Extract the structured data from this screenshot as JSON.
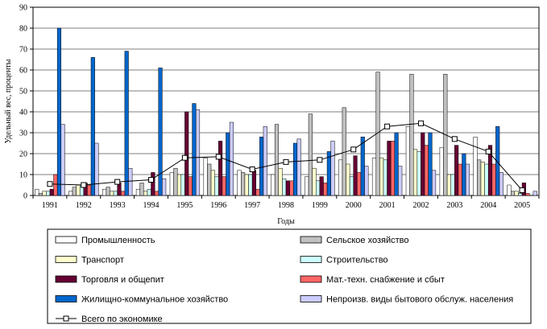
{
  "chart_data": {
    "type": "bar",
    "xlabel": "Годы",
    "ylabel": "Удельный вес, проценты",
    "ylim": [
      0,
      90
    ],
    "yticks": [
      0,
      10,
      20,
      30,
      40,
      50,
      60,
      70,
      80,
      90
    ],
    "categories": [
      "1991",
      "1992",
      "1993",
      "1994",
      "1995",
      "1996",
      "1997",
      "1998",
      "1999",
      "2000",
      "2001",
      "2002",
      "2003",
      "2004",
      "2005"
    ],
    "grid": "horizontal",
    "legend_position": "bottom",
    "series": [
      {
        "name": "Промышленность",
        "color": "#ffffff",
        "values": [
          3,
          2,
          3,
          3,
          11,
          18,
          12,
          10,
          9,
          17,
          18,
          33,
          23,
          28,
          5
        ]
      },
      {
        "name": "Сельское хозяйство",
        "color": "#c0c0c0",
        "values": [
          1,
          4,
          4,
          6,
          13,
          15,
          11,
          34,
          39,
          42,
          59,
          58,
          58,
          17,
          2
        ]
      },
      {
        "name": "Транспорт",
        "color": "#ffffcc",
        "values": [
          2,
          5,
          2,
          2,
          10,
          12,
          10,
          13,
          13,
          15,
          18,
          22,
          10,
          16,
          2
        ]
      },
      {
        "name": "Строительство",
        "color": "#ccffff",
        "values": [
          2,
          5,
          2,
          3,
          10,
          9,
          10,
          8,
          7,
          9,
          17,
          21,
          10,
          15,
          1
        ]
      },
      {
        "name": "Торговля и общепит",
        "color": "#660033",
        "values": [
          3,
          6,
          6,
          11,
          40,
          26,
          12,
          7,
          9,
          19,
          26,
          30,
          24,
          24,
          6
        ]
      },
      {
        "name": "Мат.-техн. снабжение и сбыт",
        "color": "#ff6666",
        "values": [
          10,
          5,
          2,
          2,
          9,
          9,
          3,
          7,
          6,
          11,
          26,
          24,
          15,
          15,
          1
        ]
      },
      {
        "name": "Жилищно-коммунальное хозяйство",
        "color": "#0066cc",
        "values": [
          80,
          66,
          69,
          61,
          44,
          30,
          28,
          25,
          21,
          28,
          30,
          30,
          20,
          33,
          0
        ]
      },
      {
        "name": "Непроизв. виды бытового обслуж. населения",
        "color": "#ccccff",
        "values": [
          34,
          25,
          13,
          8,
          41,
          35,
          33,
          27,
          26,
          14,
          14,
          12,
          15,
          11,
          2
        ]
      }
    ],
    "line": {
      "name": "Всего по экономике",
      "values": [
        5.5,
        5,
        6.5,
        7.5,
        18,
        18.5,
        12.5,
        16,
        17,
        22,
        33,
        34.5,
        27,
        21,
        2.5
      ]
    }
  }
}
